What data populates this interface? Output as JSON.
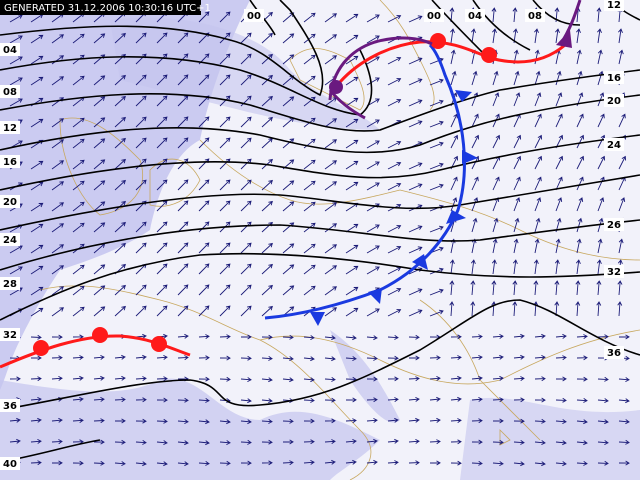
{
  "header": {
    "generated": "GENERATED 31.12.2006 10:30:16 UTC+1"
  },
  "contour_labels": {
    "left": [
      "04",
      "08",
      "12",
      "16",
      "20",
      "24",
      "28",
      "32",
      "36",
      "40"
    ],
    "top": [
      "00",
      "00",
      "04",
      "08",
      "12"
    ],
    "right": [
      "16",
      "20",
      "24",
      "26",
      "32",
      "36"
    ]
  }
}
